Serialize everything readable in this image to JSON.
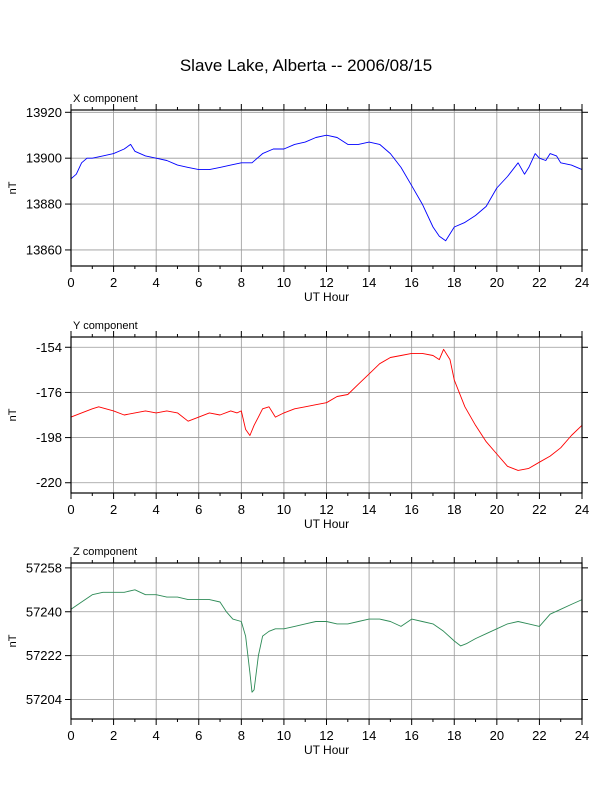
{
  "figure_title": "Slave Lake, Alberta -- 2006/08/15",
  "chart_data": [
    {
      "type": "line",
      "title": "X component",
      "xlabel": "UT Hour",
      "ylabel": "nT",
      "xlim": [
        0,
        24
      ],
      "ylim": [
        13853,
        13921
      ],
      "x_ticks": [
        0,
        2,
        4,
        6,
        8,
        10,
        12,
        14,
        16,
        18,
        20,
        22,
        24
      ],
      "y_ticks": [
        13860,
        13880,
        13900,
        13920
      ],
      "grid": true,
      "color": "#0000ff",
      "series": [
        {
          "x": [
            0,
            0.25,
            0.5,
            0.75,
            1,
            1.5,
            2,
            2.5,
            2.8,
            3,
            3.5,
            4,
            4.5,
            5,
            5.5,
            6,
            6.5,
            7,
            7.5,
            8,
            8.5,
            9,
            9.5,
            10,
            10.5,
            11,
            11.5,
            12,
            12.5,
            13,
            13.5,
            14,
            14.5,
            15,
            15.5,
            16,
            16.5,
            17,
            17.3,
            17.6,
            17.8,
            18,
            18.5,
            19,
            19.5,
            20,
            20.5,
            21,
            21.3,
            21.5,
            21.8,
            22,
            22.3,
            22.5,
            22.8,
            23,
            23.5,
            24
          ],
          "y": [
            13891,
            13893,
            13898,
            13900,
            13900,
            13901,
            13902,
            13904,
            13906,
            13903,
            13901,
            13900,
            13899,
            13897,
            13896,
            13895,
            13895,
            13896,
            13897,
            13898,
            13898,
            13902,
            13904,
            13904,
            13906,
            13907,
            13909,
            13910,
            13909,
            13906,
            13906,
            13907,
            13906,
            13902,
            13896,
            13888,
            13880,
            13870,
            13866,
            13864,
            13867,
            13870,
            13872,
            13875,
            13879,
            13887,
            13892,
            13898,
            13893,
            13896,
            13902,
            13900,
            13899,
            13902,
            13901,
            13898,
            13897,
            13895
          ]
        }
      ]
    },
    {
      "type": "line",
      "title": "Y component",
      "xlabel": "UT Hour",
      "ylabel": "nT",
      "xlim": [
        0,
        24
      ],
      "ylim": [
        -225,
        -149
      ],
      "x_ticks": [
        0,
        2,
        4,
        6,
        8,
        10,
        12,
        14,
        16,
        18,
        20,
        22,
        24
      ],
      "y_ticks": [
        -154,
        -176,
        -198,
        -220
      ],
      "grid": true,
      "color": "#ff0000",
      "series": [
        {
          "x": [
            0,
            0.5,
            1,
            1.3,
            2,
            2.5,
            3,
            3.5,
            4,
            4.5,
            5,
            5.5,
            6,
            6.5,
            7,
            7.5,
            7.8,
            8,
            8.2,
            8.4,
            8.6,
            8.8,
            9,
            9.3,
            9.6,
            10,
            10.5,
            11,
            11.5,
            12,
            12.5,
            13,
            13.5,
            14,
            14.5,
            15,
            15.5,
            16,
            16.5,
            17,
            17.3,
            17.5,
            17.8,
            18,
            18.5,
            19,
            19.5,
            20,
            20.5,
            21,
            21.5,
            22,
            22.5,
            23,
            23.5,
            24
          ],
          "y": [
            -188,
            -186,
            -184,
            -183,
            -185,
            -187,
            -186,
            -185,
            -186,
            -185,
            -186,
            -190,
            -188,
            -186,
            -187,
            -185,
            -186,
            -185,
            -194,
            -197,
            -192,
            -188,
            -184,
            -183,
            -188,
            -186,
            -184,
            -183,
            -182,
            -181,
            -178,
            -177,
            -172,
            -167,
            -162,
            -159,
            -158,
            -157,
            -157,
            -158,
            -160,
            -155,
            -160,
            -170,
            -183,
            -192,
            -200,
            -206,
            -212,
            -214,
            -213,
            -210,
            -207,
            -203,
            -197,
            -192
          ]
        }
      ]
    },
    {
      "type": "line",
      "title": "Z component",
      "xlabel": "UT Hour",
      "ylabel": "nT",
      "xlim": [
        0,
        24
      ],
      "ylim": [
        57196,
        57260
      ],
      "x_ticks": [
        0,
        2,
        4,
        6,
        8,
        10,
        12,
        14,
        16,
        18,
        20,
        22,
        24
      ],
      "y_ticks": [
        57204,
        57222,
        57240,
        57258
      ],
      "grid": true,
      "color": "#2e8b57",
      "series": [
        {
          "x": [
            0,
            0.5,
            1,
            1.5,
            2,
            2.5,
            3,
            3.5,
            4,
            4.5,
            5,
            5.5,
            6,
            6.5,
            7,
            7.3,
            7.6,
            8,
            8.2,
            8.4,
            8.5,
            8.6,
            8.8,
            9,
            9.3,
            9.6,
            10,
            10.5,
            11,
            11.5,
            12,
            12.5,
            13,
            13.5,
            14,
            14.5,
            15,
            15.5,
            16,
            16.5,
            17,
            17.5,
            18,
            18.3,
            18.6,
            19,
            19.5,
            20,
            20.5,
            21,
            21.5,
            22,
            22.5,
            23,
            23.5,
            24
          ],
          "y": [
            57241,
            57244,
            57247,
            57248,
            57248,
            57248,
            57249,
            57247,
            57247,
            57246,
            57246,
            57245,
            57245,
            57245,
            57244,
            57240,
            57237,
            57236,
            57230,
            57215,
            57207,
            57208,
            57222,
            57230,
            57232,
            57233,
            57233,
            57234,
            57235,
            57236,
            57236,
            57235,
            57235,
            57236,
            57237,
            57237,
            57236,
            57234,
            57237,
            57236,
            57235,
            57232,
            57228,
            57226,
            57227,
            57229,
            57231,
            57233,
            57235,
            57236,
            57235,
            57234,
            57239,
            57241,
            57243,
            57245
          ]
        }
      ]
    }
  ]
}
